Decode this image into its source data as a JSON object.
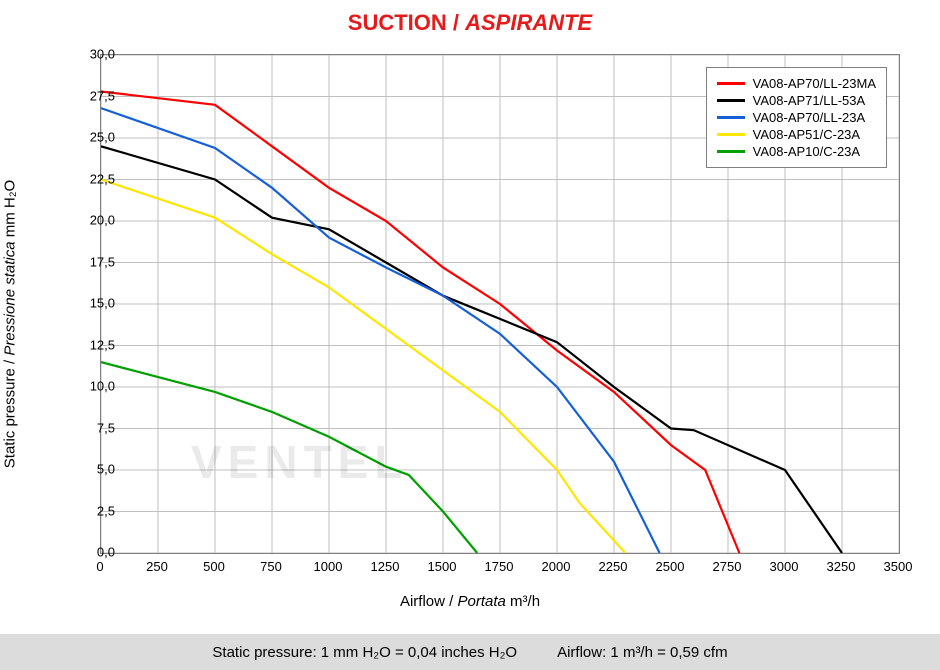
{
  "title": {
    "text_en": "SUCTION",
    "separator": " / ",
    "text_it": "ASPIRANTE",
    "color": "#e51b1b",
    "fontsize": 22
  },
  "chart": {
    "type": "line",
    "background_color": "#ffffff",
    "grid_color": "#bfbfbf",
    "border_color": "#7f7f7f",
    "xlim": [
      0,
      3500
    ],
    "ylim": [
      0,
      30
    ],
    "xtick_step": 250,
    "ytick_step": 2.5,
    "xlabel_en": "Airflow",
    "xlabel_sep": " / ",
    "xlabel_it": "Portata",
    "xlabel_unit": "  m³/h",
    "ylabel_en": "Static pressure",
    "ylabel_sep": " / ",
    "ylabel_it": "Pressione statica",
    "ylabel_unit": "  mm  H₂O",
    "label_fontsize": 15,
    "tick_fontsize": 13,
    "line_width": 2.2,
    "series": [
      {
        "name": "VA08-AP70/LL-23MA",
        "color": "#ff0000",
        "points": [
          [
            0,
            27.8
          ],
          [
            500,
            27.0
          ],
          [
            750,
            24.5
          ],
          [
            1000,
            22.0
          ],
          [
            1250,
            20.0
          ],
          [
            1500,
            17.2
          ],
          [
            1750,
            15.0
          ],
          [
            2000,
            12.2
          ],
          [
            2250,
            9.7
          ],
          [
            2500,
            6.5
          ],
          [
            2650,
            5.0
          ],
          [
            2800,
            0.0
          ]
        ]
      },
      {
        "name": "VA08-AP71/LL-53A",
        "color": "#000000",
        "points": [
          [
            0,
            24.5
          ],
          [
            500,
            22.5
          ],
          [
            750,
            20.2
          ],
          [
            1000,
            19.5
          ],
          [
            1250,
            17.5
          ],
          [
            1500,
            15.5
          ],
          [
            2000,
            12.7
          ],
          [
            2250,
            10.0
          ],
          [
            2500,
            7.5
          ],
          [
            2600,
            7.4
          ],
          [
            3000,
            5.0
          ],
          [
            3250,
            0.0
          ]
        ]
      },
      {
        "name": "VA08-AP70/LL-23A",
        "color": "#1560d8",
        "points": [
          [
            0,
            26.8
          ],
          [
            500,
            24.4
          ],
          [
            750,
            22.0
          ],
          [
            1000,
            19.0
          ],
          [
            1250,
            17.2
          ],
          [
            1500,
            15.5
          ],
          [
            1750,
            13.2
          ],
          [
            2000,
            10.0
          ],
          [
            2250,
            5.5
          ],
          [
            2450,
            0.0
          ]
        ]
      },
      {
        "name": "VA08-AP51/C-23A",
        "color": "#ffe600",
        "points": [
          [
            0,
            22.5
          ],
          [
            500,
            20.2
          ],
          [
            750,
            18.0
          ],
          [
            1000,
            16.0
          ],
          [
            1250,
            13.5
          ],
          [
            1500,
            11.0
          ],
          [
            1750,
            8.5
          ],
          [
            2000,
            5.0
          ],
          [
            2100,
            3.0
          ],
          [
            2300,
            0.0
          ]
        ]
      },
      {
        "name": "VA08-AP10/C-23A",
        "color": "#00a000",
        "points": [
          [
            0,
            11.5
          ],
          [
            500,
            9.7
          ],
          [
            750,
            8.5
          ],
          [
            1000,
            7.0
          ],
          [
            1250,
            5.2
          ],
          [
            1350,
            4.7
          ],
          [
            1500,
            2.5
          ],
          [
            1650,
            0.0
          ]
        ]
      }
    ]
  },
  "footer": {
    "left": "Static pressure: 1 mm H₂O = 0,04 inches H₂O",
    "right": "Airflow: 1 m³/h = 0,59 cfm",
    "background_color": "#dcdcdc",
    "fontsize": 15
  },
  "watermark": {
    "text": "VENTEL",
    "opacity": 0.08
  }
}
